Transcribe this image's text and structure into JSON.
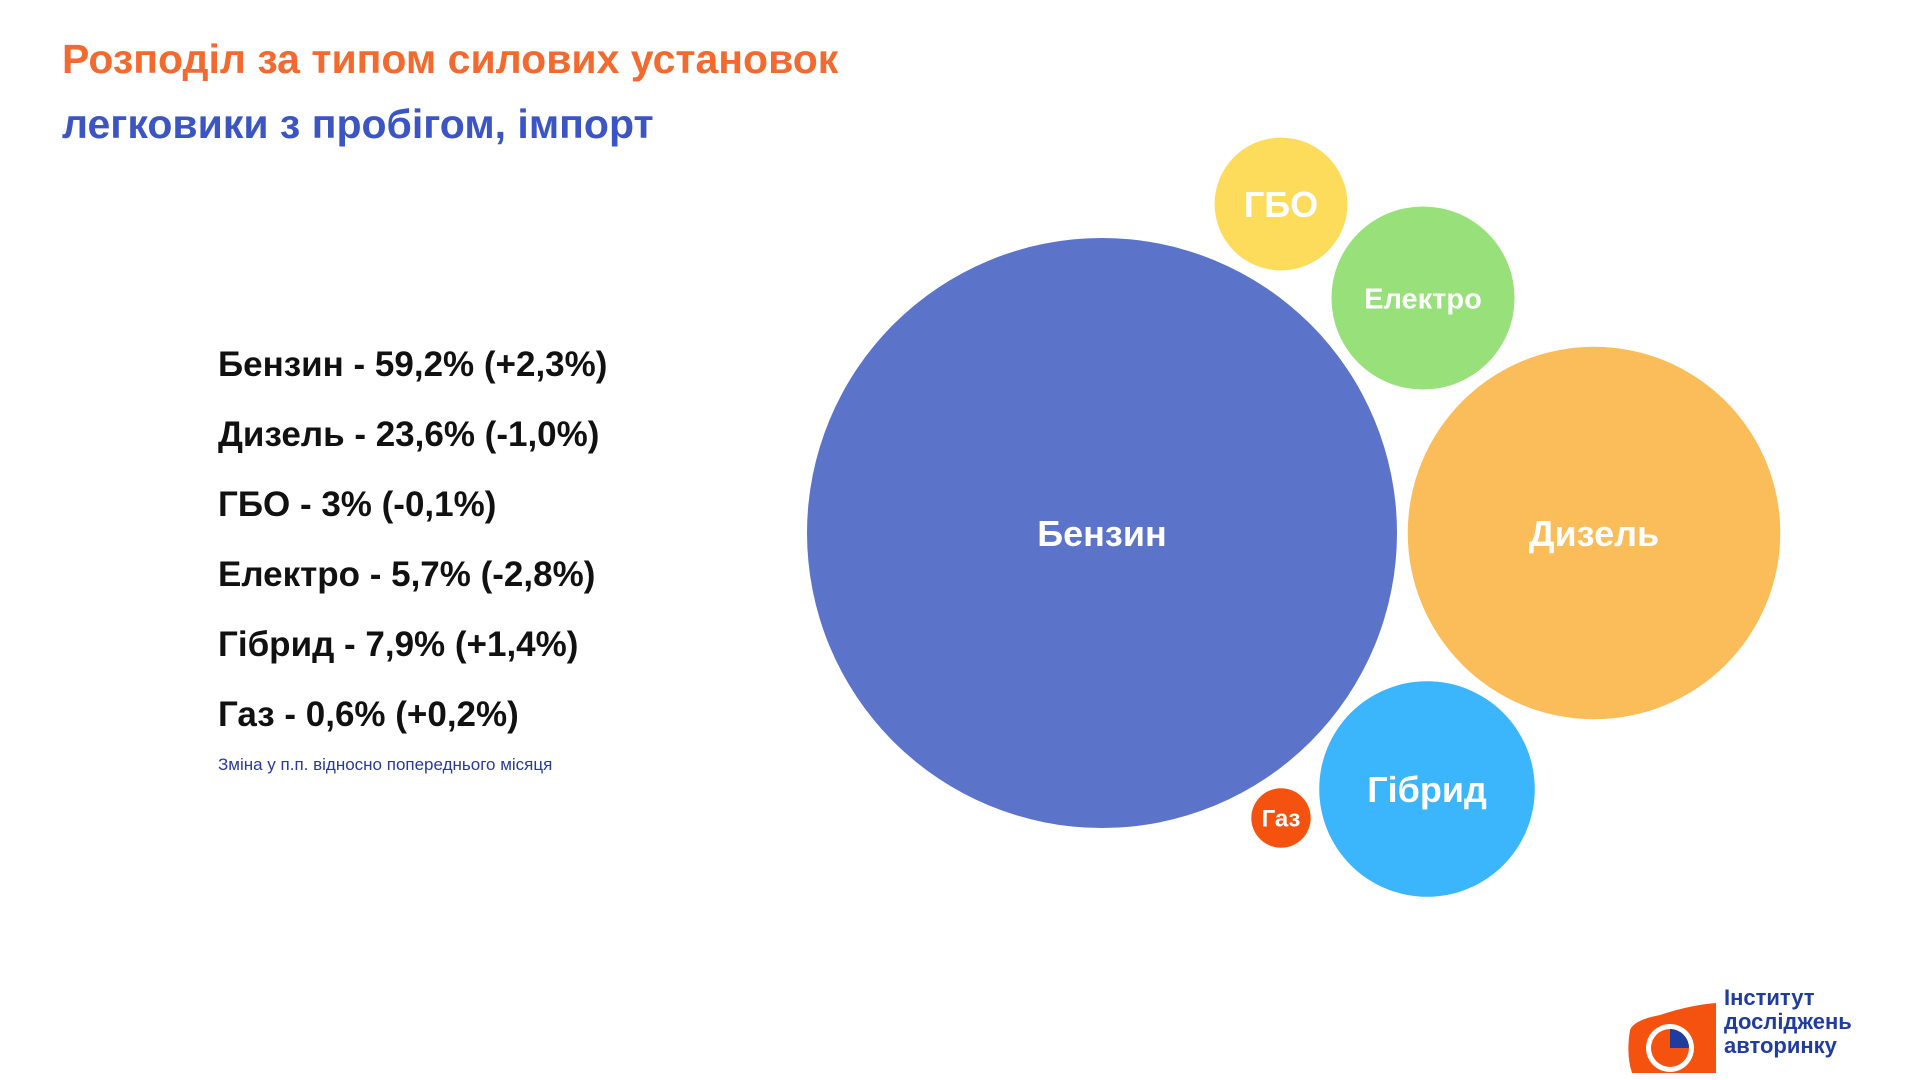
{
  "header": {
    "title": "Розподіл за типом силових установок",
    "subtitle": "легковики з пробігом, імпорт"
  },
  "legend": {
    "items": [
      "Бензин - 59,2% (+2,3%)",
      "Дизель - 23,6% (-1,0%)",
      "ГБО - 3% (-0,1%)",
      "Електро - 5,7% (-2,8%)",
      "Гібрид - 7,9% (+1,4%)",
      "Газ - 0,6% (+0,2%)"
    ],
    "note": "Зміна у п.п. відносно попереднього місяця"
  },
  "chart_data": {
    "type": "bubble",
    "categories": [
      "Бензин",
      "Дизель",
      "ГБО",
      "Електро",
      "Гібрид",
      "Газ"
    ],
    "values": [
      59.2,
      23.6,
      3,
      5.7,
      7.9,
      0.6
    ],
    "changes": [
      2.3,
      -1.0,
      -0.1,
      -2.8,
      1.4,
      0.2
    ],
    "unit": "%",
    "colors": [
      "#5b73c9",
      "#fbbd5a",
      "#fddc5c",
      "#97e07a",
      "#3bb5fb",
      "#f5520f"
    ]
  },
  "logo": {
    "lines": [
      "Інститут",
      "досліджень",
      "авторинку"
    ],
    "colors": {
      "orange": "#f5520f",
      "blue": "#1f3c9e"
    }
  }
}
